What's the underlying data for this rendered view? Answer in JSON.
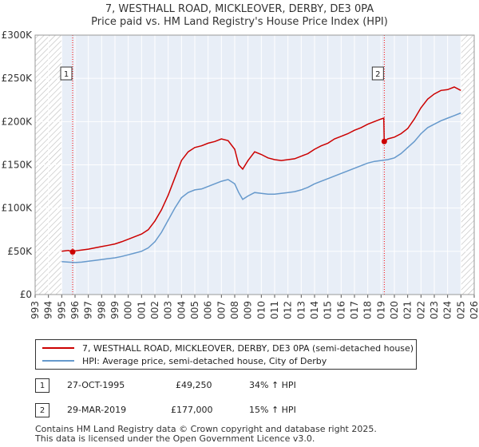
{
  "title": "7, WESTHALL ROAD, MICKLEOVER, DERBY, DE3 0PA",
  "subtitle": "Price paid vs. HM Land Registry's House Price Index (HPI)",
  "legend": {
    "series1": "7, WESTHALL ROAD, MICKLEOVER, DERBY, DE3 0PA (semi-detached house)",
    "series2": "HPI: Average price, semi-detached house, City of Derby"
  },
  "transactions": [
    {
      "num": "1",
      "date": "27-OCT-1995",
      "price": "£49,250",
      "hpi": "34% ↑ HPI"
    },
    {
      "num": "2",
      "date": "29-MAR-2019",
      "price": "£177,000",
      "hpi": "15% ↑ HPI"
    }
  ],
  "footer": {
    "line1": "Contains HM Land Registry data © Crown copyright and database right 2025.",
    "line2": "This data is licensed under the Open Government Licence v3.0."
  },
  "colors": {
    "property": "#cc0000",
    "hpi": "#6699cc",
    "marker_line": "#ff0000",
    "grid": "#cccccc",
    "background": "#e8eef7"
  },
  "chart_data": {
    "type": "line",
    "title": "Price paid vs. HM Land Registry's House Price Index (HPI)",
    "xlabel": "",
    "ylabel": "",
    "xlim": [
      1993,
      2026
    ],
    "ylim": [
      0,
      300000
    ],
    "x_ticks": [
      "1993",
      "1994",
      "1995",
      "1996",
      "1997",
      "1998",
      "1999",
      "2000",
      "2001",
      "2002",
      "2003",
      "2004",
      "2005",
      "2006",
      "2007",
      "2008",
      "2009",
      "2010",
      "2011",
      "2012",
      "2013",
      "2014",
      "2015",
      "2016",
      "2017",
      "2018",
      "2019",
      "2020",
      "2021",
      "2022",
      "2023",
      "2024",
      "2025",
      "2026"
    ],
    "y_ticks": [
      {
        "value": 0,
        "label": "£0"
      },
      {
        "value": 50000,
        "label": "£50K"
      },
      {
        "value": 100000,
        "label": "£100K"
      },
      {
        "value": 150000,
        "label": "£150K"
      },
      {
        "value": 200000,
        "label": "£200K"
      },
      {
        "value": 250000,
        "label": "£250K"
      },
      {
        "value": 300000,
        "label": "£300K"
      }
    ],
    "hatched_regions": [
      [
        1993,
        1995.0
      ],
      [
        2025.0,
        2026
      ]
    ],
    "markers": [
      {
        "label": "1",
        "x": 1995.82,
        "y": 49250
      },
      {
        "label": "2",
        "x": 2019.24,
        "y": 177000
      }
    ],
    "series": [
      {
        "name": "7, WESTHALL ROAD, MICKLEOVER, DERBY, DE3 0PA (semi-detached house)",
        "color": "#cc0000",
        "x": [
          1995.0,
          1995.5,
          1995.82,
          1996.0,
          1996.5,
          1997.0,
          1997.5,
          1998.0,
          1998.5,
          1999.0,
          1999.5,
          2000.0,
          2000.5,
          2001.0,
          2001.5,
          2002.0,
          2002.5,
          2003.0,
          2003.5,
          2004.0,
          2004.5,
          2005.0,
          2005.5,
          2006.0,
          2006.5,
          2007.0,
          2007.5,
          2008.0,
          2008.3,
          2008.6,
          2009.0,
          2009.5,
          2010.0,
          2010.5,
          2011.0,
          2011.5,
          2012.0,
          2012.5,
          2013.0,
          2013.5,
          2014.0,
          2014.5,
          2015.0,
          2015.5,
          2016.0,
          2016.5,
          2017.0,
          2017.5,
          2018.0,
          2018.5,
          2019.0,
          2019.2,
          2019.24,
          2019.5,
          2020.0,
          2020.5,
          2021.0,
          2021.5,
          2022.0,
          2022.5,
          2023.0,
          2023.5,
          2024.0,
          2024.5,
          2025.0
        ],
        "values": [
          50000,
          51000,
          49250,
          50500,
          51500,
          52500,
          54000,
          55500,
          57000,
          58500,
          61000,
          64000,
          67000,
          70000,
          75000,
          85000,
          98000,
          115000,
          135000,
          155000,
          165000,
          170000,
          172000,
          175000,
          177000,
          180000,
          178000,
          168000,
          150000,
          145000,
          155000,
          165000,
          162000,
          158000,
          156000,
          155000,
          156000,
          157000,
          160000,
          163000,
          168000,
          172000,
          175000,
          180000,
          183000,
          186000,
          190000,
          193000,
          197000,
          200000,
          203000,
          204000,
          177000,
          180000,
          182000,
          186000,
          192000,
          203000,
          216000,
          226000,
          232000,
          236000,
          237000,
          240000,
          236000
        ]
      },
      {
        "name": "HPI: Average price, semi-detached house, City of Derby",
        "color": "#6699cc",
        "x": [
          1995.0,
          1995.5,
          1996.0,
          1996.5,
          1997.0,
          1997.5,
          1998.0,
          1998.5,
          1999.0,
          1999.5,
          2000.0,
          2000.5,
          2001.0,
          2001.5,
          2002.0,
          2002.5,
          2003.0,
          2003.5,
          2004.0,
          2004.5,
          2005.0,
          2005.5,
          2006.0,
          2006.5,
          2007.0,
          2007.5,
          2008.0,
          2008.3,
          2008.6,
          2009.0,
          2009.5,
          2010.0,
          2010.5,
          2011.0,
          2011.5,
          2012.0,
          2012.5,
          2013.0,
          2013.5,
          2014.0,
          2014.5,
          2015.0,
          2015.5,
          2016.0,
          2016.5,
          2017.0,
          2017.5,
          2018.0,
          2018.5,
          2019.0,
          2019.5,
          2020.0,
          2020.5,
          2021.0,
          2021.5,
          2022.0,
          2022.5,
          2023.0,
          2023.5,
          2024.0,
          2024.5,
          2025.0
        ],
        "values": [
          38000,
          37500,
          37000,
          37500,
          38500,
          39500,
          40500,
          41500,
          42500,
          44000,
          46000,
          48000,
          50000,
          54000,
          61000,
          72000,
          86000,
          100000,
          112000,
          118000,
          121000,
          122000,
          125000,
          128000,
          131000,
          133000,
          128000,
          118000,
          110000,
          114000,
          118000,
          117000,
          116000,
          116000,
          117000,
          118000,
          119000,
          121000,
          124000,
          128000,
          131000,
          134000,
          137000,
          140000,
          143000,
          146000,
          149000,
          152000,
          154000,
          155000,
          156000,
          158000,
          163000,
          170000,
          177000,
          186000,
          193000,
          197000,
          201000,
          204000,
          207000,
          210000
        ]
      }
    ]
  }
}
